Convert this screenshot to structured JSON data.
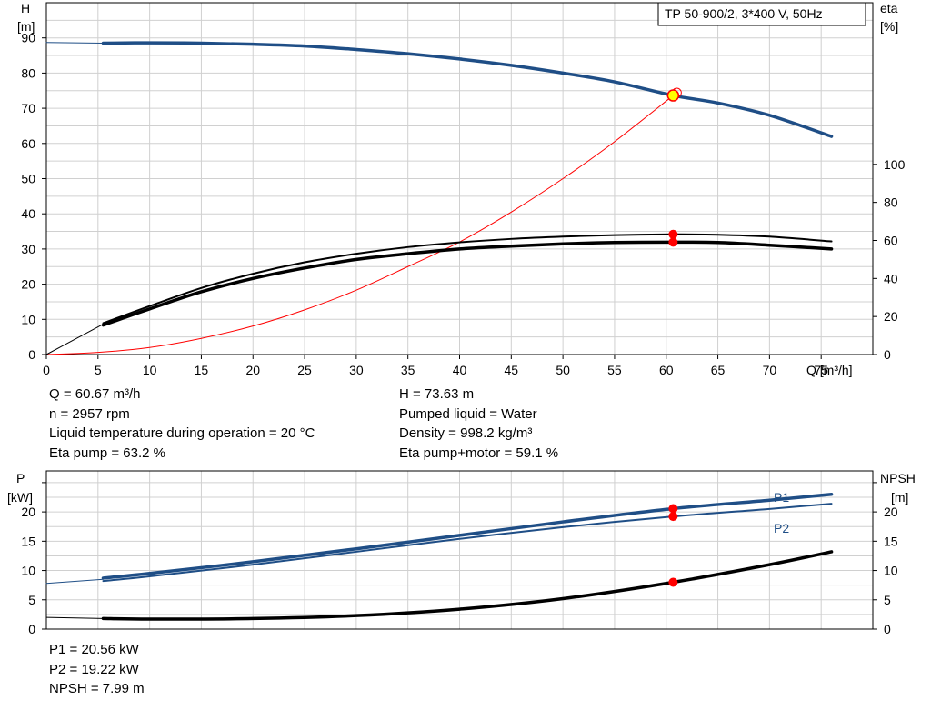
{
  "model_label": "TP 50-900/2, 3*400 V, 50Hz",
  "colors": {
    "blue": "#1f4e86",
    "black": "#000000",
    "red": "#ff0000",
    "op_yellow": "#ffff00",
    "grid": "#d0d0d0"
  },
  "top_chart": {
    "y_left_label": [
      "H",
      "[m]"
    ],
    "y_right_label": [
      "eta",
      "[%]"
    ],
    "x_label": "Q [m³/h]"
  },
  "operating_info": {
    "left": [
      "Q = 60.67 m³/h",
      "n = 2957 rpm",
      "Liquid temperature during operation = 20 °C",
      "Eta pump = 63.2 %"
    ],
    "right": [
      "H = 73.63 m",
      "Pumped liquid = Water",
      "Density = 998.2 kg/m³",
      "Eta pump+motor = 59.1 %"
    ]
  },
  "bottom_chart": {
    "y_left_label": [
      "P",
      "[kW]"
    ],
    "y_right_label": [
      "NPSH",
      "[m]"
    ],
    "series_labels": {
      "p1": "P1",
      "p2": "P2"
    }
  },
  "power_info": [
    "P1 = 20.56 kW",
    "P2 = 19.22 kW",
    "NPSH = 7.99 m"
  ],
  "chart_data": [
    {
      "type": "line",
      "x_range": [
        0,
        80
      ],
      "x_ticks": [
        0,
        5,
        10,
        15,
        20,
        25,
        30,
        35,
        40,
        45,
        50,
        55,
        60,
        65,
        70,
        75
      ],
      "y_left_range": [
        0,
        100
      ],
      "y_left_ticks": [
        0,
        10,
        20,
        30,
        40,
        50,
        60,
        70,
        80,
        90
      ],
      "y_right_range": [
        0,
        185
      ],
      "y_right_ticks": [
        0,
        20,
        40,
        60,
        80,
        100
      ],
      "grid": true,
      "series": [
        {
          "key": "head",
          "axis": "left",
          "color": "#1f4e86",
          "width": 3.5,
          "x": [
            5.5,
            10,
            15,
            20,
            25,
            30,
            35,
            40,
            45,
            50,
            55,
            60.67,
            65,
            70,
            76
          ],
          "y": [
            88.5,
            88.6,
            88.5,
            88.2,
            87.7,
            86.7,
            85.5,
            84.0,
            82.2,
            80.0,
            77.5,
            73.63,
            71.5,
            68.0,
            62.0
          ]
        },
        {
          "key": "head_ext",
          "axis": "left",
          "color": "#1f4e86",
          "width": 1,
          "x": [
            0,
            5.5
          ],
          "y": [
            88.7,
            88.5
          ]
        },
        {
          "key": "system",
          "axis": "left",
          "color": "#ff0000",
          "width": 1,
          "x": [
            0,
            5,
            10,
            15,
            20,
            25,
            30,
            35,
            40,
            45,
            50,
            55,
            60.67
          ],
          "y": [
            0,
            0.6,
            2.0,
            4.6,
            8.1,
            12.7,
            18.3,
            25.0,
            32.0,
            40.5,
            50.0,
            60.5,
            73.63
          ]
        },
        {
          "key": "eta_pump_motor",
          "axis": "right",
          "color": "#000000",
          "width": 3.5,
          "x": [
            5.5,
            10,
            15,
            20,
            25,
            30,
            35,
            40,
            45,
            50,
            55,
            60.67,
            65,
            70,
            76
          ],
          "y": [
            15.5,
            24.0,
            33.0,
            40.0,
            45.5,
            50.0,
            53.0,
            55.5,
            57.0,
            58.2,
            58.9,
            59.1,
            58.9,
            57.5,
            55.5
          ]
        },
        {
          "key": "eta_pump",
          "axis": "right",
          "color": "#000000",
          "width": 2,
          "x": [
            5.5,
            10,
            15,
            20,
            25,
            30,
            35,
            40,
            45,
            50,
            55,
            60.67,
            65,
            70,
            76
          ],
          "y": [
            16.5,
            25.5,
            35.0,
            42.5,
            48.5,
            53.0,
            56.5,
            59.0,
            60.8,
            62.0,
            62.8,
            63.2,
            63.0,
            62.0,
            59.5
          ]
        },
        {
          "key": "eta_ext",
          "axis": "right",
          "color": "#000000",
          "width": 1,
          "x": [
            0,
            5.5
          ],
          "y": [
            0,
            16
          ]
        }
      ],
      "operating_point": {
        "x": 60.67,
        "head": 73.63,
        "eta_pump": 63.2,
        "eta_pump_motor": 59.1
      }
    },
    {
      "type": "line",
      "x_range": [
        0,
        80
      ],
      "y_left_range": [
        0,
        27
      ],
      "y_left_ticks": [
        0,
        5,
        10,
        15,
        20
      ],
      "y_right_range": [
        0,
        27
      ],
      "y_right_ticks": [
        0,
        5,
        10,
        15,
        20
      ],
      "grid": true,
      "series": [
        {
          "key": "p1",
          "axis": "left",
          "color": "#1f4e86",
          "width": 3.5,
          "x": [
            5.5,
            10,
            20,
            30,
            40,
            50,
            60.67,
            70,
            76
          ],
          "y": [
            8.7,
            9.5,
            11.5,
            13.7,
            16.0,
            18.3,
            20.56,
            22.0,
            23.0
          ]
        },
        {
          "key": "p2",
          "axis": "left",
          "color": "#1f4e86",
          "width": 2,
          "x": [
            5.5,
            10,
            20,
            30,
            40,
            50,
            60.67,
            70,
            76
          ],
          "y": [
            8.2,
            9.0,
            11.0,
            13.2,
            15.4,
            17.4,
            19.22,
            20.5,
            21.4
          ]
        },
        {
          "key": "p_ext",
          "axis": "left",
          "color": "#1f4e86",
          "width": 1,
          "x": [
            0,
            5.5
          ],
          "y": [
            7.8,
            8.5
          ]
        },
        {
          "key": "npsh",
          "axis": "right",
          "color": "#000000",
          "width": 3.5,
          "x": [
            5.5,
            10,
            20,
            30,
            40,
            50,
            60.67,
            70,
            76
          ],
          "y": [
            1.8,
            1.7,
            1.8,
            2.3,
            3.4,
            5.2,
            7.99,
            11.0,
            13.2
          ]
        },
        {
          "key": "npsh_ext",
          "axis": "right",
          "color": "#000000",
          "width": 1,
          "x": [
            0,
            5.5
          ],
          "y": [
            2.0,
            1.8
          ]
        }
      ],
      "operating_point": {
        "x": 60.67,
        "p1": 20.56,
        "p2": 19.22,
        "npsh": 7.99
      }
    }
  ]
}
